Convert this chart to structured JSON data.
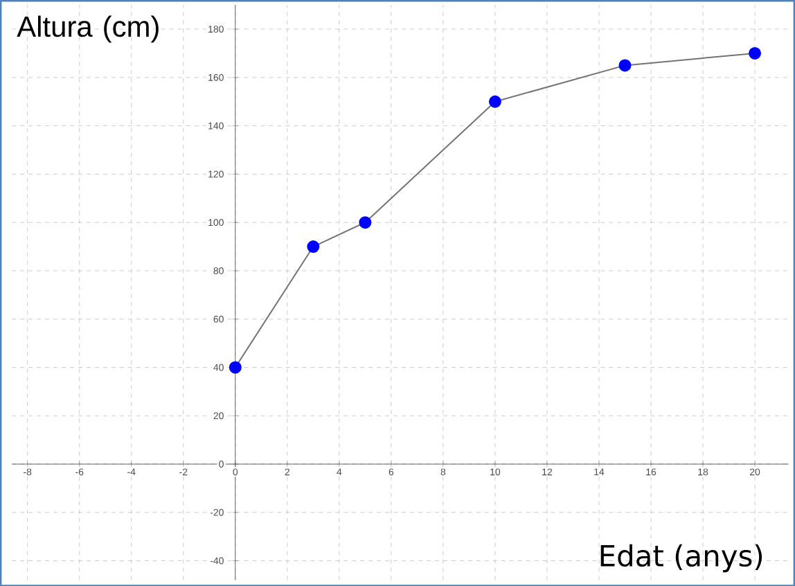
{
  "chart_data": {
    "type": "line",
    "xlabel": "Edat (anys)",
    "ylabel": "Altura (cm)",
    "x": [
      0,
      3,
      5,
      10,
      15,
      20
    ],
    "series": [
      {
        "color": "#737373",
        "marker": "none",
        "values": [
          40,
          90,
          100,
          150,
          165,
          170
        ]
      },
      {
        "type": "scatter",
        "color": "#0000ff",
        "marker": "circle",
        "values": [
          40,
          90,
          100,
          150,
          165,
          170
        ]
      }
    ],
    "xlim": [
      -8.6,
      21.3
    ],
    "ylim": [
      -48,
      190
    ],
    "xticks": [
      -8,
      -6,
      -4,
      -2,
      0,
      2,
      4,
      6,
      8,
      10,
      12,
      14,
      16,
      18,
      20
    ],
    "yticks": [
      -40,
      -20,
      0,
      20,
      40,
      60,
      80,
      100,
      120,
      140,
      160,
      180
    ],
    "grid": true,
    "line_style": "solid"
  }
}
